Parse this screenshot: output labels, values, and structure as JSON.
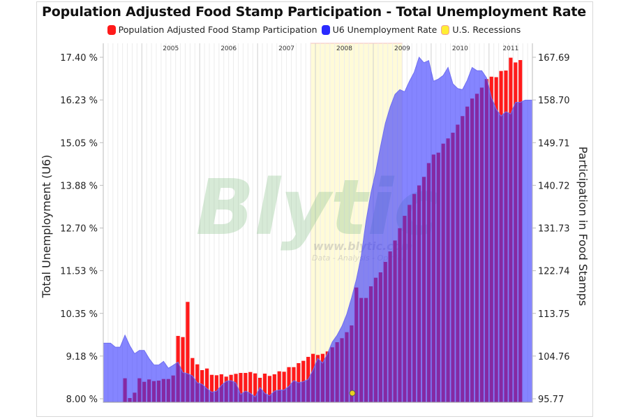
{
  "chart_data": {
    "type": "bar+area",
    "title": "Population Adjusted Food Stamp Participation - Total Unemployment Rate",
    "legend": [
      {
        "name": "Population Adjusted Food Stamp Participation",
        "color": "#ff1a1a"
      },
      {
        "name": "U6 Unemployment Rate",
        "color": "#2a2aff"
      },
      {
        "name": "U.S. Recessions",
        "color": "#ffee33"
      }
    ],
    "legend_placement": "top",
    "ylabel_left": "Total Unemployment (U6)",
    "ylabel_right": "Participation in Food Stamps",
    "ylim_left": [
      8.0,
      17.4
    ],
    "ylim_right": [
      95.77,
      167.69
    ],
    "yticks_left": [
      "8.00 %",
      "9.18 %",
      "10.35 %",
      "11.53 %",
      "12.70 %",
      "13.88 %",
      "15.05 %",
      "16.23 %",
      "17.40 %"
    ],
    "yticks_right": [
      "95.77",
      "104.76",
      "113.75",
      "122.74",
      "131.73",
      "140.72",
      "149.71",
      "158.70",
      "167.69"
    ],
    "year_labels": [
      "2005",
      "2006",
      "2007",
      "2008",
      "2009",
      "2010",
      "2011"
    ],
    "grid": "vertical monthly",
    "watermark": {
      "logo": "Blytic",
      "url": "www.blytic.com",
      "tagline": "Data - Analysis - Opinion"
    },
    "categories": [
      "2004-05",
      "2004-06",
      "2004-07",
      "2004-08",
      "2004-09",
      "2004-10",
      "2004-11",
      "2004-12",
      "2005-01",
      "2005-02",
      "2005-03",
      "2005-04",
      "2005-05",
      "2005-06",
      "2005-07",
      "2005-08",
      "2005-09",
      "2005-10",
      "2005-11",
      "2005-12",
      "2006-01",
      "2006-02",
      "2006-03",
      "2006-04",
      "2006-05",
      "2006-06",
      "2006-07",
      "2006-08",
      "2006-09",
      "2006-10",
      "2006-11",
      "2006-12",
      "2007-01",
      "2007-02",
      "2007-03",
      "2007-04",
      "2007-05",
      "2007-06",
      "2007-07",
      "2007-08",
      "2007-09",
      "2007-10",
      "2007-11",
      "2007-12",
      "2008-01",
      "2008-02",
      "2008-03",
      "2008-04",
      "2008-05",
      "2008-06",
      "2008-07",
      "2008-08",
      "2008-09",
      "2008-10",
      "2008-11",
      "2008-12",
      "2009-01",
      "2009-02",
      "2009-03",
      "2009-04",
      "2009-05",
      "2009-06",
      "2009-07",
      "2009-08",
      "2009-09",
      "2009-10",
      "2009-11",
      "2009-12",
      "2010-01",
      "2010-02",
      "2010-03",
      "2010-04",
      "2010-05",
      "2010-06",
      "2010-07",
      "2010-08",
      "2010-09",
      "2010-10",
      "2010-11",
      "2010-12",
      "2011-01",
      "2011-02",
      "2011-03",
      "2011-04",
      "2011-05",
      "2011-06",
      "2011-07",
      "2011-08",
      "2011-09"
    ],
    "recessions": [
      {
        "start": "2007-12",
        "end": "2009-06"
      }
    ],
    "series": [
      {
        "name": "U6 Unemployment Rate",
        "type": "area",
        "axis": "left",
        "color": "#3333ff",
        "values": [
          9.53,
          9.53,
          9.42,
          9.42,
          9.75,
          9.46,
          9.24,
          9.33,
          9.33,
          9.11,
          8.93,
          8.93,
          9.03,
          8.84,
          8.92,
          9.01,
          8.72,
          8.69,
          8.63,
          8.44,
          8.4,
          8.28,
          8.18,
          8.21,
          8.37,
          8.48,
          8.5,
          8.44,
          8.12,
          8.21,
          8.15,
          8.05,
          8.31,
          8.15,
          8.08,
          8.21,
          8.24,
          8.24,
          8.34,
          8.5,
          8.44,
          8.47,
          8.53,
          8.79,
          9.11,
          8.98,
          9.24,
          9.56,
          9.75,
          10.0,
          10.33,
          10.78,
          11.29,
          11.93,
          12.89,
          13.66,
          14.24,
          14.94,
          15.58,
          16.03,
          16.38,
          16.51,
          16.45,
          16.74,
          16.99,
          17.4,
          17.25,
          17.31,
          16.74,
          16.8,
          16.9,
          17.12,
          16.67,
          16.54,
          16.51,
          16.77,
          17.12,
          17.03,
          17.03,
          16.83,
          16.29,
          15.97,
          15.78,
          15.9,
          15.84,
          16.16,
          16.16,
          16.22,
          16.22
        ]
      },
      {
        "name": "Population Adjusted Food Stamp Participation",
        "type": "bar",
        "axis": "right",
        "color": "#ff1a1a",
        "values": [
          null,
          null,
          null,
          null,
          100.08,
          95.92,
          97.05,
          100.08,
          99.34,
          99.84,
          99.49,
          99.59,
          99.93,
          99.93,
          100.67,
          109.0,
          108.76,
          116.17,
          104.35,
          103.02,
          101.8,
          102.14,
          100.81,
          100.72,
          100.92,
          100.43,
          100.81,
          101.02,
          101.21,
          101.21,
          101.4,
          101.11,
          100.18,
          101.06,
          100.58,
          100.92,
          101.55,
          101.46,
          102.43,
          102.43,
          103.27,
          103.76,
          104.59,
          105.23,
          104.99,
          105.23,
          105.73,
          106.61,
          107.68,
          108.52,
          109.79,
          111.21,
          119.2,
          117.0,
          117.0,
          119.45,
          121.26,
          122.39,
          124.6,
          126.8,
          129.1,
          131.7,
          134.3,
          136.6,
          138.9,
          140.7,
          142.5,
          145.4,
          147.2,
          147.6,
          149.5,
          150.6,
          151.8,
          153.5,
          155.3,
          157.3,
          159.0,
          160.0,
          161.3,
          163.1,
          163.6,
          163.5,
          164.8,
          164.9,
          167.6,
          166.6,
          167.1,
          null,
          null
        ]
      }
    ]
  }
}
